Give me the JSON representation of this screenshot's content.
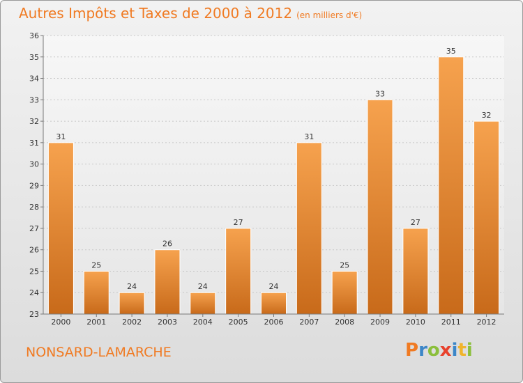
{
  "chart_data": {
    "type": "bar",
    "title": "Autres Impôts et Taxes de 2000 à 2012",
    "subtitle": "(en milliers d'€)",
    "categories": [
      "2000",
      "2001",
      "2002",
      "2003",
      "2004",
      "2005",
      "2006",
      "2007",
      "2008",
      "2009",
      "2010",
      "2011",
      "2012"
    ],
    "values": [
      31,
      25,
      24,
      26,
      24,
      27,
      24,
      31,
      25,
      33,
      27,
      35,
      32
    ],
    "ylim": [
      23,
      36
    ],
    "yticks": [
      23,
      24,
      25,
      26,
      27,
      28,
      29,
      30,
      31,
      32,
      33,
      34,
      35,
      36
    ],
    "grid": "y",
    "bar_color_top": "#f6a24e",
    "bar_color_bottom": "#c86a1a"
  },
  "footer": {
    "location": "NONSARD-LAMARCHE",
    "brand_letters": [
      "P",
      "r",
      "o",
      "x",
      "i",
      "t",
      "i"
    ],
    "brand_colors": [
      "#f07a22",
      "#3c86c8",
      "#8bbf3c",
      "#e8412c",
      "#3c86c8",
      "#f0b42c",
      "#8bbf3c"
    ]
  }
}
